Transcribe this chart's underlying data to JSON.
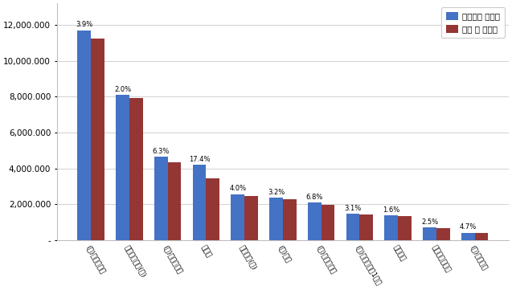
{
  "categories": [
    "(주)퓌니스소재",
    "이코리아산업(주)",
    "(주)동진테크원",
    "코이스",
    "태백전자(주)",
    "(주)밀아",
    "(주)세일하이텍",
    "(주)테크노전자1공장",
    "후성테크",
    "우리텍주식회사",
    "(주)한성전자"
  ],
  "blue_values": [
    11700000,
    8100000,
    4650000,
    4200000,
    2580000,
    2370000,
    2100000,
    1480000,
    1380000,
    720000,
    430000
  ],
  "red_values": [
    11244300,
    7938000,
    4357050,
    3469200,
    2476800,
    2294160,
    1957200,
    1434160,
    1357920,
    702000,
    409790
  ],
  "percentages": [
    "3.9%",
    "2.0%",
    "6.3%",
    "17.4%",
    "4.0%",
    "3.2%",
    "6.8%",
    "3.1%",
    "1.6%",
    "2.5%",
    "4.7%"
  ],
  "blue_color": "#4472C4",
  "red_color": "#943634",
  "legend_labels": [
    "온실가스 배출량",
    "감축 후 배출량"
  ],
  "ytick_values": [
    0,
    2000000,
    4000000,
    6000000,
    8000000,
    10000000,
    12000000
  ],
  "ytick_labels": [
    "-",
    "2,000.000",
    "4,000.000",
    "6,000.000",
    "8,000.000",
    "10,000.000",
    "12,000.000"
  ],
  "ylim": [
    0,
    13200000
  ],
  "background_color": "#FFFFFF",
  "grid_color": "#BFBFBF"
}
